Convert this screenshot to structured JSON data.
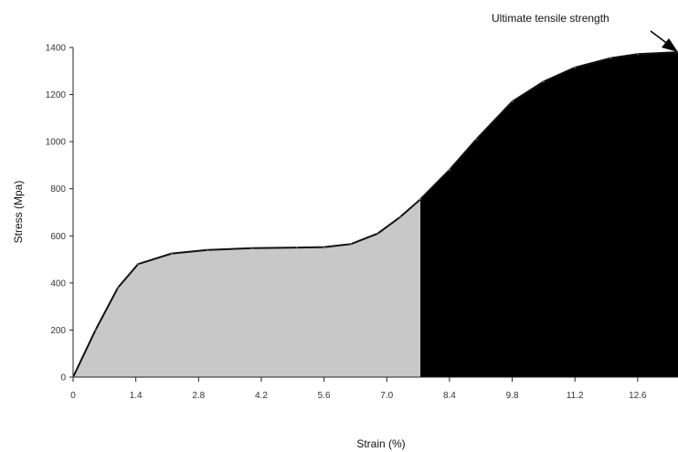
{
  "chart_data": {
    "type": "area",
    "title": "",
    "xlabel": "Strain (%)",
    "ylabel": "Stress (Mpa)",
    "xlim": [
      0,
      13.5
    ],
    "ylim": [
      0,
      1400
    ],
    "x_ticks": [
      "0",
      "1.4",
      "2.8",
      "4.2",
      "5.6",
      "7.0",
      "8.4",
      "9.8",
      "11.2",
      "12.6"
    ],
    "y_ticks": [
      "0",
      "200",
      "400",
      "600",
      "800",
      "1000",
      "1200",
      "1400"
    ],
    "grid": false,
    "series": [
      {
        "points": [
          [
            0,
            0
          ],
          [
            0.5,
            200
          ],
          [
            1.0,
            380
          ],
          [
            1.45,
            480
          ],
          [
            2.2,
            525
          ],
          [
            3.0,
            540
          ],
          [
            4.0,
            548
          ],
          [
            5.0,
            550
          ],
          [
            5.6,
            552
          ],
          [
            6.2,
            565
          ],
          [
            6.8,
            610
          ],
          [
            7.3,
            680
          ],
          [
            7.75,
            755
          ],
          [
            8.4,
            880
          ],
          [
            9.0,
            1010
          ],
          [
            9.8,
            1170
          ],
          [
            10.5,
            1255
          ],
          [
            11.2,
            1315
          ],
          [
            12.0,
            1355
          ],
          [
            12.6,
            1372
          ],
          [
            13.5,
            1380
          ]
        ]
      }
    ],
    "regions": [
      {
        "from": 0,
        "to": 7.75,
        "color": "#c8c8c8"
      },
      {
        "from": 7.75,
        "to": 13.5,
        "color": "#000000"
      }
    ],
    "annotation": {
      "text": "Ultimate tensile strength",
      "x": 13.5,
      "y": 1380
    }
  }
}
